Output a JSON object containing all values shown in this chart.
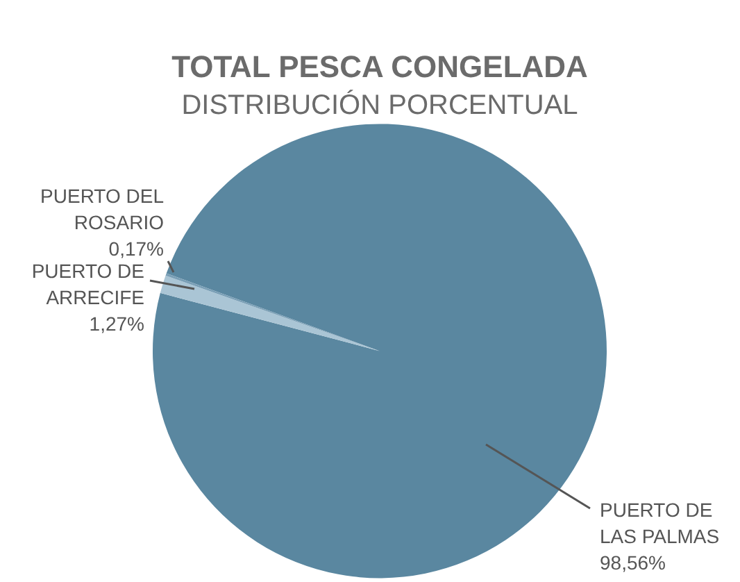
{
  "chart_data": {
    "type": "pie",
    "title": "TOTAL PESCA CONGELADA",
    "subtitle": "DISTRIBUCIÓN PORCENTUAL",
    "categories": [
      "PUERTO DE LAS PALMAS",
      "PUERTO DE ARRECIFE",
      "PUERTO DEL ROSARIO"
    ],
    "values": [
      98.56,
      1.27,
      0.17
    ],
    "colors": [
      "#5a87a0",
      "#aac5d5",
      "#7a9fb6"
    ],
    "value_labels": [
      "98,56%",
      "1,27%",
      "0,17%"
    ],
    "legend": false
  }
}
